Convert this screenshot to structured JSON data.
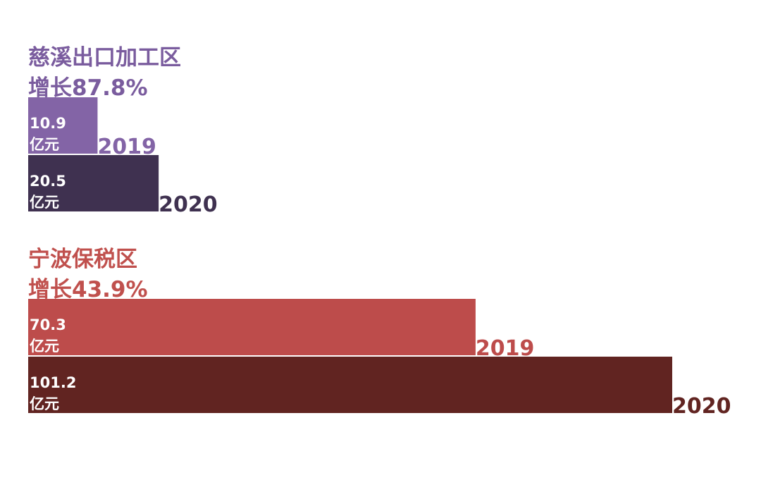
{
  "chart_data": [
    {
      "type": "bar",
      "orientation": "horizontal",
      "title": "慈溪出口加工区",
      "subtitle": "增长87.8%",
      "title_color": "#7a5c9e",
      "categories": [
        "2019",
        "2020"
      ],
      "values": [
        10.9,
        20.5
      ],
      "value_unit": "亿元",
      "colors": [
        "#8364a6",
        "#3f3150"
      ]
    },
    {
      "type": "bar",
      "orientation": "horizontal",
      "title": "宁波保税区",
      "subtitle": "增长43.9%",
      "title_color": "#c0504d",
      "categories": [
        "2019",
        "2020"
      ],
      "values": [
        70.3,
        101.2
      ],
      "value_unit": "亿元",
      "colors": [
        "#bd4c4b",
        "#612421"
      ]
    }
  ]
}
